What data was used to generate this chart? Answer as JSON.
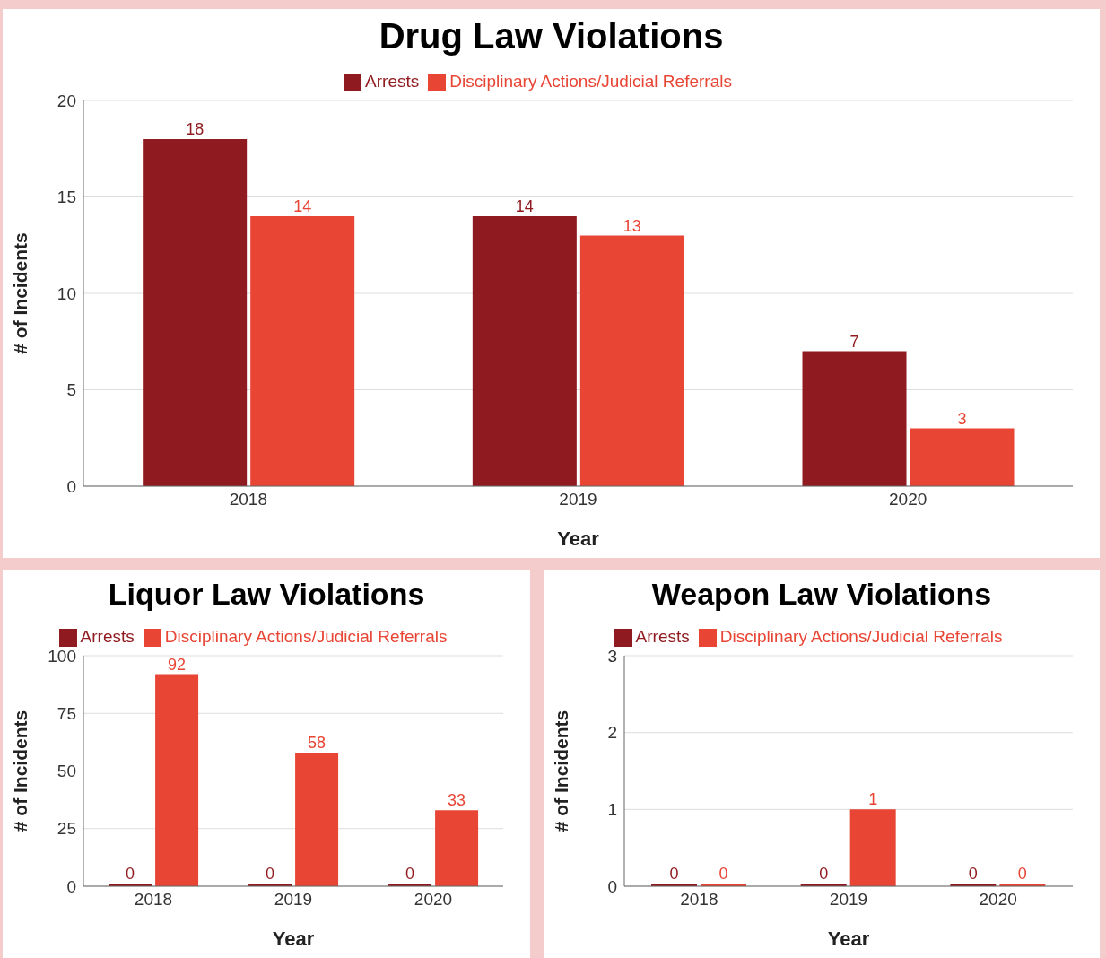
{
  "chart_data": [
    {
      "type": "bar",
      "title": "Drug Law Violations",
      "xlabel": "Year",
      "ylabel": "# of Incidents",
      "categories": [
        "2018",
        "2019",
        "2020"
      ],
      "series": [
        {
          "name": "Arrests",
          "color": "#8f1a1f",
          "values": [
            18,
            14,
            7
          ]
        },
        {
          "name": "Disciplinary Actions/Judicial Referrals",
          "color": "#e84534",
          "values": [
            14,
            13,
            3
          ]
        }
      ],
      "ylim": [
        0,
        20
      ],
      "yticks": [
        0,
        5,
        10,
        15,
        20
      ],
      "grid": "y",
      "legend": "top",
      "data_labels": true
    },
    {
      "type": "bar",
      "title": "Liquor Law Violations",
      "xlabel": "Year",
      "ylabel": "# of Incidents",
      "categories": [
        "2018",
        "2019",
        "2020"
      ],
      "series": [
        {
          "name": "Arrests",
          "color": "#8f1a1f",
          "values": [
            0,
            0,
            0
          ]
        },
        {
          "name": "Disciplinary Actions/Judicial Referrals",
          "color": "#e84534",
          "values": [
            92,
            58,
            33
          ]
        }
      ],
      "ylim": [
        0,
        100
      ],
      "yticks": [
        0,
        25,
        50,
        75,
        100
      ],
      "grid": "y",
      "legend": "top",
      "data_labels": true
    },
    {
      "type": "bar",
      "title": "Weapon Law Violations",
      "xlabel": "Year",
      "ylabel": "# of Incidents",
      "categories": [
        "2018",
        "2019",
        "2020"
      ],
      "series": [
        {
          "name": "Arrests",
          "color": "#8f1a1f",
          "values": [
            0,
            0,
            0
          ]
        },
        {
          "name": "Disciplinary Actions/Judicial Referrals",
          "color": "#e84534",
          "values": [
            0,
            1,
            0
          ]
        }
      ],
      "ylim": [
        0,
        3
      ],
      "yticks": [
        0,
        1,
        2,
        3
      ],
      "grid": "y",
      "legend": "top",
      "data_labels": true
    }
  ]
}
